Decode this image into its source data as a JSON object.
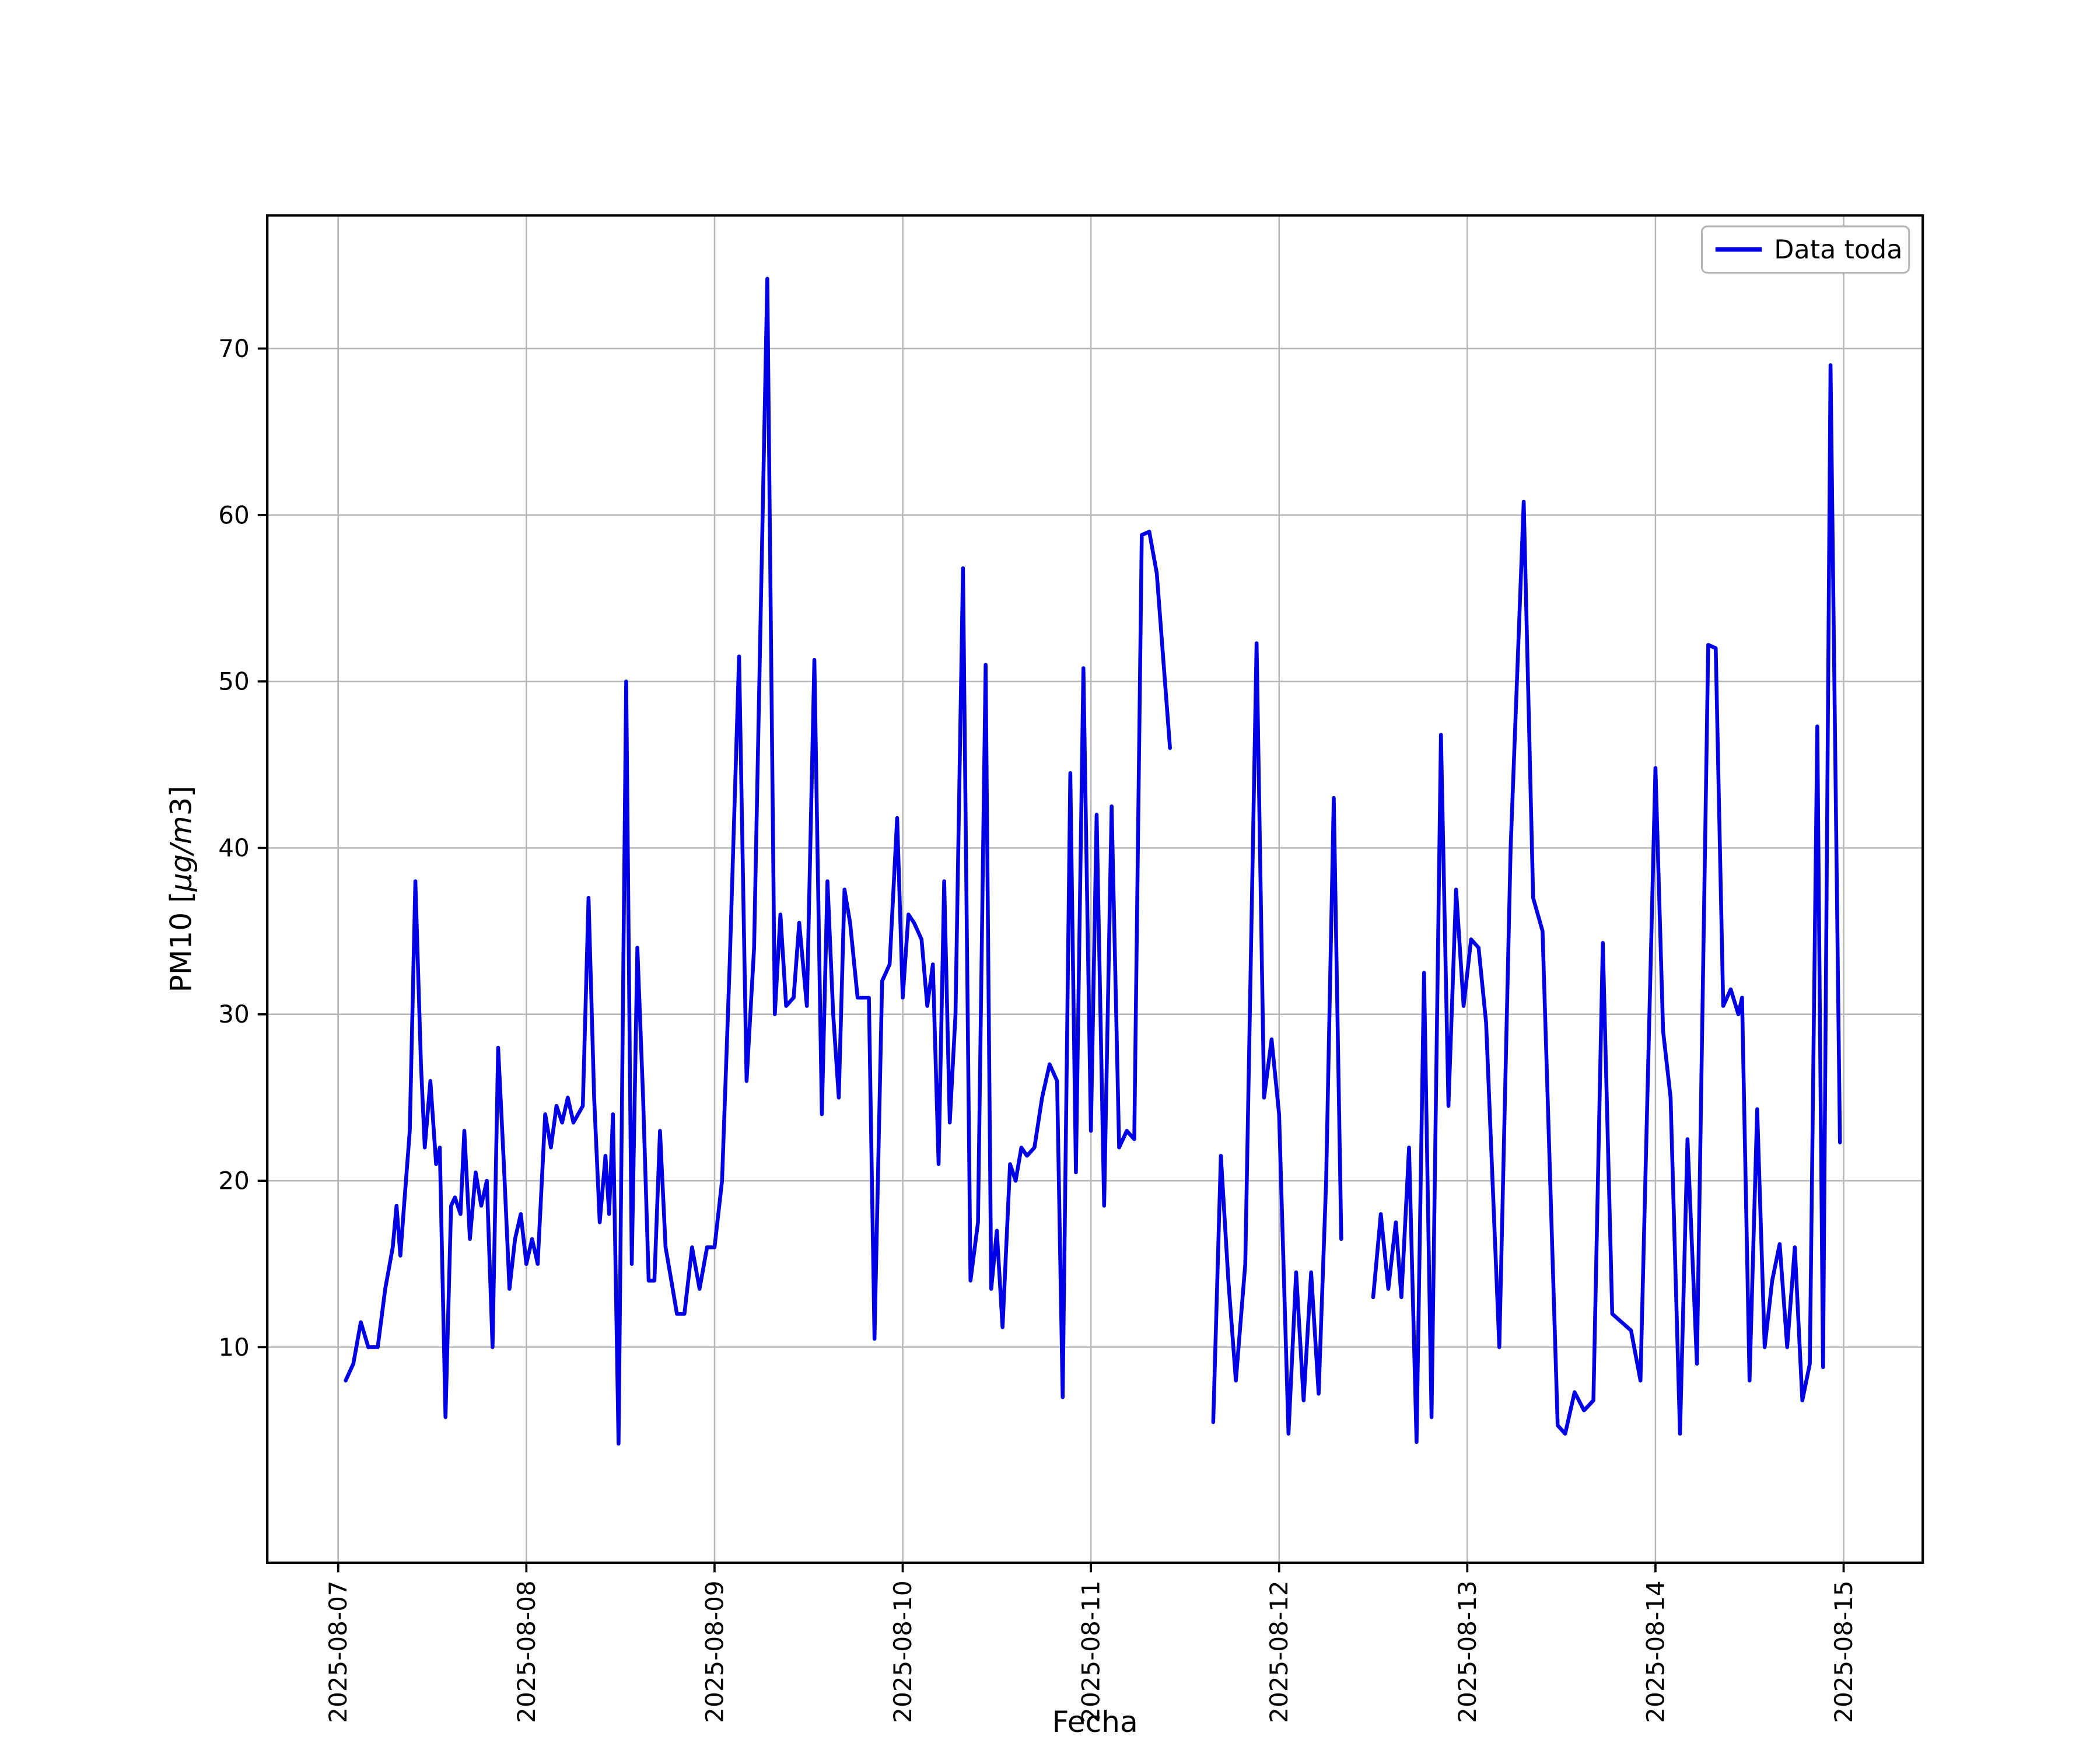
{
  "style": {
    "background": "#ffffff",
    "axes_background": "#ffffff",
    "grid_color": "#b8b8b8",
    "spine_color": "#000000",
    "line_color": "#0000e6",
    "legend_edge_color": "#b4b4b4"
  },
  "chart_data": {
    "type": "line",
    "title": "",
    "xlabel": "Fecha",
    "ylabel": "PM10 [µg/m3]",
    "ylabel_prefix": "PM10 [",
    "ylabel_italic": "µg/m",
    "ylabel_suffix": "3]",
    "legend": [
      "Data toda"
    ],
    "legend_position": "upper right",
    "grid": true,
    "x_unit": "days since 2025-08-07 00:00",
    "x_tick_labels": [
      "2025-08-07",
      "2025-08-08",
      "2025-08-09",
      "2025-08-10",
      "2025-08-11",
      "2025-08-12",
      "2025-08-13",
      "2025-08-14",
      "2025-08-15"
    ],
    "x_tick_positions_days": [
      0,
      1,
      2,
      3,
      4,
      5,
      6,
      7,
      8
    ],
    "y_ticks": [
      10,
      20,
      30,
      40,
      50,
      60,
      70
    ],
    "xlim_days": [
      -0.377,
      8.42
    ],
    "ylim": [
      -2.95,
      78.0
    ],
    "series": [
      {
        "name": "Data toda",
        "color": "#0000e6",
        "segments": [
          {
            "x": [
              0.04,
              0.08,
              0.12,
              0.16,
              0.21,
              0.25,
              0.29,
              0.31,
              0.33,
              0.35,
              0.38,
              0.41,
              0.44,
              0.46,
              0.49,
              0.52,
              0.54,
              0.57,
              0.6,
              0.62,
              0.65,
              0.67,
              0.7,
              0.73,
              0.76,
              0.79,
              0.82,
              0.85,
              0.88,
              0.91,
              0.94,
              0.97,
              1.0,
              1.03,
              1.06,
              1.1,
              1.13,
              1.16,
              1.19,
              1.22,
              1.25,
              1.3,
              1.33,
              1.36,
              1.39,
              1.42,
              1.44,
              1.46,
              1.49,
              1.53,
              1.56,
              1.59,
              1.62,
              1.65,
              1.68,
              1.71,
              1.74,
              1.77,
              1.8,
              1.84,
              1.88,
              1.92,
              1.96,
              2.0,
              2.04,
              2.08,
              2.13,
              2.17,
              2.21,
              2.28,
              2.32,
              2.35,
              2.38,
              2.42,
              2.45,
              2.49,
              2.53,
              2.57,
              2.6,
              2.63,
              2.66,
              2.69,
              2.72,
              2.76,
              2.82,
              2.85,
              2.89,
              2.93,
              2.97,
              3.0,
              3.03,
              3.06,
              3.1,
              3.13,
              3.16,
              3.19,
              3.22,
              3.25,
              3.28,
              3.32,
              3.36,
              3.4,
              3.44,
              3.47,
              3.5,
              3.53,
              3.57,
              3.6,
              3.63,
              3.66,
              3.7,
              3.74,
              3.78,
              3.82,
              3.85,
              3.89,
              3.92,
              3.96,
              4.0,
              4.03,
              4.07,
              4.11,
              4.15,
              4.19,
              4.23,
              4.27,
              4.31,
              4.35,
              4.42
            ],
            "y": [
              8.0,
              9.0,
              11.5,
              10.0,
              10.0,
              13.5,
              16.0,
              18.5,
              15.5,
              18.5,
              23.0,
              38.0,
              27.0,
              22.0,
              26.0,
              21.0,
              22.0,
              5.8,
              18.5,
              19.0,
              18.0,
              23.0,
              16.5,
              20.5,
              18.5,
              20.0,
              10.0,
              28.0,
              21.0,
              13.5,
              16.5,
              18.0,
              15.0,
              16.5,
              15.0,
              24.0,
              22.0,
              24.5,
              23.5,
              25.0,
              23.5,
              24.5,
              37.0,
              25.0,
              17.5,
              21.5,
              18.0,
              24.0,
              4.2,
              50.0,
              15.0,
              34.0,
              25.0,
              14.0,
              14.0,
              23.0,
              16.0,
              14.0,
              12.0,
              12.0,
              16.0,
              13.5,
              16.0,
              16.0,
              20.0,
              33.0,
              51.5,
              26.0,
              34.0,
              74.2,
              30.0,
              36.0,
              30.5,
              31.0,
              35.5,
              30.5,
              51.3,
              24.0,
              38.0,
              30.0,
              25.0,
              37.5,
              35.5,
              31.0,
              31.0,
              10.5,
              32.0,
              33.0,
              41.8,
              31.0,
              36.0,
              35.5,
              34.5,
              30.5,
              33.0,
              21.0,
              38.0,
              23.5,
              30.0,
              56.8,
              14.0,
              17.5,
              51.0,
              13.5,
              17.0,
              11.2,
              21.0,
              20.0,
              22.0,
              21.5,
              22.0,
              25.0,
              27.0,
              26.0,
              7.0,
              44.5,
              20.5,
              50.8,
              23.0,
              42.0,
              18.5,
              42.5,
              22.0,
              23.0,
              22.5,
              58.8,
              59.0,
              56.5,
              46.0
            ]
          },
          {
            "x": [
              4.65,
              4.69,
              4.73,
              4.77,
              4.82,
              4.88,
              4.92,
              4.96,
              5.0,
              5.05,
              5.09,
              5.13,
              5.17,
              5.21,
              5.25,
              5.29,
              5.33
            ],
            "y": [
              5.5,
              21.5,
              14.0,
              8.0,
              15.0,
              52.3,
              25.0,
              28.5,
              24.0,
              4.8,
              14.5,
              6.8,
              14.5,
              7.2,
              20.0,
              43.0,
              16.5
            ]
          },
          {
            "x": [
              5.5,
              5.54,
              5.58,
              5.62,
              5.65,
              5.69,
              5.73,
              5.77,
              5.81,
              5.86,
              5.9,
              5.94,
              5.98,
              6.02,
              6.06,
              6.1,
              6.17,
              6.23,
              6.3,
              6.35,
              6.4,
              6.48,
              6.52,
              6.57,
              6.62,
              6.67,
              6.72,
              6.77,
              6.82,
              6.87,
              6.92,
              7.0,
              7.04,
              7.08,
              7.13,
              7.17,
              7.22,
              7.28,
              7.32,
              7.36,
              7.4,
              7.44,
              7.46,
              7.5,
              7.54,
              7.58,
              7.62,
              7.66,
              7.7,
              7.74,
              7.78,
              7.82,
              7.86,
              7.89,
              7.93,
              7.98
            ],
            "y": [
              13.0,
              18.0,
              13.5,
              17.5,
              13.0,
              22.0,
              4.3,
              32.5,
              5.8,
              46.8,
              24.5,
              37.5,
              30.5,
              34.5,
              34.0,
              29.5,
              10.0,
              40.0,
              60.8,
              37.0,
              35.0,
              5.3,
              4.8,
              7.3,
              6.2,
              6.8,
              34.3,
              12.0,
              11.5,
              11.0,
              8.0,
              44.8,
              29.0,
              25.0,
              4.8,
              22.5,
              9.0,
              52.2,
              52.0,
              30.5,
              31.5,
              30.0,
              31.0,
              8.0,
              24.3,
              10.0,
              14.0,
              16.2,
              10.0,
              16.0,
              6.8,
              9.0,
              47.3,
              8.8,
              69.0,
              22.3
            ]
          }
        ]
      }
    ]
  }
}
